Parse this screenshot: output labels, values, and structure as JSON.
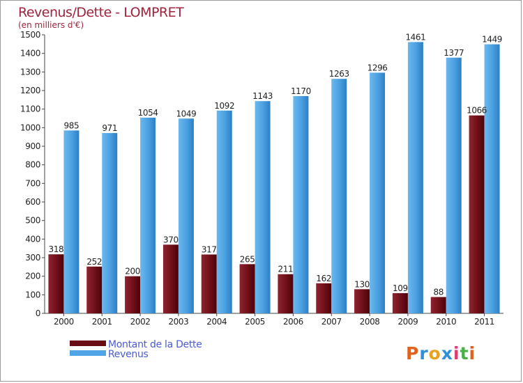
{
  "chart_data": {
    "type": "bar",
    "title": "Revenus/Dette - LOMPRET",
    "subtitle": "(en milliers d'€)",
    "categories": [
      "2000",
      "2001",
      "2002",
      "2003",
      "2004",
      "2005",
      "2006",
      "2007",
      "2008",
      "2009",
      "2010",
      "2011"
    ],
    "series": [
      {
        "name": "Montant de la Dette",
        "color": "#7b1520",
        "values": [
          318,
          252,
          200,
          370,
          317,
          265,
          211,
          162,
          130,
          109,
          88,
          1066
        ]
      },
      {
        "name": "Revenus",
        "color": "#4ea4e4",
        "values": [
          985,
          971,
          1054,
          1049,
          1092,
          1143,
          1170,
          1263,
          1296,
          1461,
          1377,
          1449
        ]
      }
    ],
    "ylim": [
      0,
      1500
    ],
    "yticks": [
      0,
      100,
      200,
      300,
      400,
      500,
      600,
      700,
      800,
      900,
      1000,
      1100,
      1200,
      1300,
      1400,
      1500
    ],
    "grid": false,
    "legend_position": "bottom-left"
  },
  "brand": {
    "logo_text": "Proxiti"
  }
}
